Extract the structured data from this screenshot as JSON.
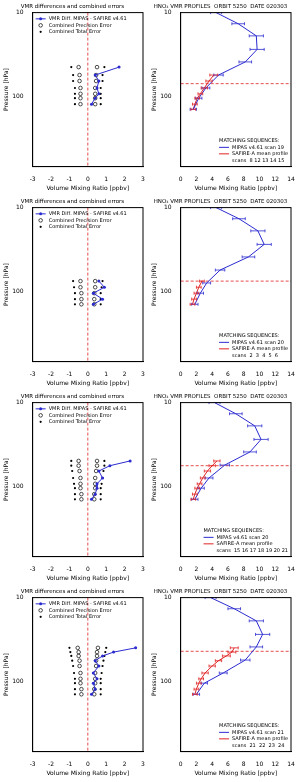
{
  "chart_data": [
    {
      "type": "scatter",
      "title": "VMR differences and combined errors",
      "x_label": "Volume Mixing Ratio [ppbv]",
      "y_label": "Pressure [hPa]",
      "xlim": [
        -3,
        3
      ],
      "xticks": [
        -3,
        -2,
        -1,
        0,
        1,
        2,
        3
      ],
      "ylim": [
        10,
        700
      ],
      "yticks": [
        10,
        100
      ],
      "log": "y",
      "grid": false,
      "legend": "upper left",
      "vline_x": 0,
      "series": [
        {
          "name": "VMR Diff. MIPAS - SAFIRE v4.61",
          "color": "#2b2bd0",
          "marker": "circle",
          "line_style": "solid",
          "x": [
            1.7,
            0.4,
            0.6,
            0.5,
            0.6,
            0.4,
            0.2
          ],
          "y": [
            45,
            56,
            66,
            80,
            94,
            106,
            125
          ]
        },
        {
          "name": "Combined Precision Error",
          "color": "#000000",
          "marker": "open_circle",
          "line_style": "none",
          "x": [
            -0.5,
            0.5,
            -0.45,
            0.45,
            -0.45,
            0.45,
            -0.4,
            0.4,
            -0.4,
            0.4,
            -0.4,
            0.4,
            -0.4,
            0.4
          ],
          "y": [
            45,
            45,
            56,
            56,
            66,
            66,
            80,
            80,
            94,
            94,
            106,
            106,
            125,
            125
          ]
        },
        {
          "name": "Combined Total Error",
          "color": "#000000",
          "marker": "dot",
          "line_style": "none",
          "x": [
            -0.9,
            0.9,
            -0.8,
            0.8,
            -0.8,
            0.8,
            -0.7,
            0.7,
            -0.7,
            0.7,
            -0.7,
            0.7,
            -0.7,
            0.7
          ],
          "y": [
            45,
            45,
            56,
            56,
            66,
            66,
            80,
            80,
            94,
            94,
            106,
            106,
            125,
            125
          ]
        }
      ]
    },
    {
      "type": "scatter",
      "title": "HNO₃ VMR PROFILES  ORBIT 5250  DATE 020303",
      "x_label": "Volume Mixing Ratio [ppbv]",
      "y_label": "Pressure [hPa]",
      "xlim": [
        0,
        14
      ],
      "xticks": [
        0,
        2,
        4,
        6,
        8,
        10,
        12,
        14
      ],
      "ylim": [
        10,
        700
      ],
      "yticks": [
        10,
        100
      ],
      "log": "y",
      "grid": false,
      "legend": "lower right",
      "legend_title": "MATCHING SEQUENCES:",
      "hline_y": 71,
      "series": [
        {
          "name": "MIPAS v4.61 scan 19",
          "color": "#2b2bd0",
          "marker": "none",
          "line_style": "solid",
          "x": [
            4.5,
            7.3,
            9.6,
            9.7,
            8.2,
            4.8,
            3.2,
            2.3,
            1.6
          ],
          "y": [
            10,
            13.6,
            19,
            27.6,
            39,
            56,
            80,
            106,
            144
          ],
          "x_err": [
            0.7,
            0.8,
            0.9,
            0.9,
            0.8,
            0.6,
            0.5,
            0.4,
            0.4
          ]
        },
        {
          "name": "SAFIRE-A mean profile\nscans  8 12 13 14 15",
          "color": "#e02020",
          "marker": "none",
          "line_style": "solid",
          "x": [
            4.2,
            3.6,
            3.0,
            2.5,
            2.1,
            1.8,
            1.6
          ],
          "y": [
            56,
            66,
            80,
            94,
            106,
            125,
            144
          ],
          "x_err": [
            0.5,
            0.4,
            0.4,
            0.3,
            0.3,
            0.3,
            0.3
          ]
        }
      ]
    },
    {
      "type": "scatter",
      "title": "VMR differences and combined errors",
      "x_label": "Volume Mixing Ratio [ppbv]",
      "y_label": "Pressure [hPa]",
      "xlim": [
        -3,
        3
      ],
      "xticks": [
        -3,
        -2,
        -1,
        0,
        1,
        2,
        3
      ],
      "ylim": [
        10,
        700
      ],
      "yticks": [
        10,
        100
      ],
      "log": "y",
      "grid": false,
      "legend": "upper left",
      "vline_x": 0,
      "series": [
        {
          "name": "VMR Diff. MIPAS - SAFIRE v4.61",
          "color": "#2b2bd0",
          "marker": "circle",
          "line_style": "solid",
          "x": [
            0.6,
            0.9,
            0.3,
            0.8,
            0.3
          ],
          "y": [
            76,
            90,
            106,
            125,
            144
          ]
        },
        {
          "name": "Combined Precision Error",
          "color": "#000000",
          "marker": "open_circle",
          "line_style": "none",
          "x": [
            -0.4,
            0.4,
            -0.4,
            0.4,
            -0.35,
            0.35,
            -0.35,
            0.35,
            -0.35,
            0.35
          ],
          "y": [
            76,
            76,
            90,
            90,
            106,
            106,
            125,
            125,
            144,
            144
          ]
        },
        {
          "name": "Combined Total Error",
          "color": "#000000",
          "marker": "dot",
          "line_style": "none",
          "x": [
            -0.8,
            0.8,
            -0.75,
            0.75,
            -0.7,
            0.7,
            -0.7,
            0.7,
            -0.7,
            0.7
          ],
          "y": [
            76,
            76,
            90,
            90,
            106,
            106,
            125,
            125,
            144,
            144
          ]
        }
      ]
    },
    {
      "type": "scatter",
      "title": "HNO₃ VMR PROFILES  ORBIT 5250  DATE 020303",
      "x_label": "Volume Mixing Ratio [ppbv]",
      "y_label": "Pressure [hPa]",
      "xlim": [
        0,
        14
      ],
      "xticks": [
        0,
        2,
        4,
        6,
        8,
        10,
        12,
        14
      ],
      "ylim": [
        10,
        700
      ],
      "yticks": [
        10,
        100
      ],
      "log": "y",
      "grid": false,
      "legend": "lower right",
      "legend_title": "MATCHING SEQUENCES:",
      "hline_y": 76,
      "series": [
        {
          "name": "MIPAS v4.61 scan 20",
          "color": "#2b2bd0",
          "marker": "none",
          "line_style": "solid",
          "x": [
            4.5,
            7.4,
            9.8,
            10.6,
            8.6,
            5.0,
            3.3,
            2.5,
            1.8
          ],
          "y": [
            10,
            13.6,
            19,
            27.6,
            39,
            56,
            80,
            106,
            144
          ],
          "x_err": [
            0.7,
            0.8,
            0.9,
            0.9,
            0.8,
            0.6,
            0.5,
            0.4,
            0.4
          ]
        },
        {
          "name": "SAFIRE-A mean profile\nscans  2  3  4  5  6",
          "color": "#e02020",
          "marker": "none",
          "line_style": "solid",
          "x": [
            2.7,
            2.3,
            2.0,
            1.7,
            1.5
          ],
          "y": [
            76,
            90,
            106,
            125,
            144
          ],
          "x_err": [
            0.3,
            0.3,
            0.3,
            0.3,
            0.3
          ]
        }
      ]
    },
    {
      "type": "scatter",
      "title": "VMR differences and combined errors",
      "x_label": "Volume Mixing Ratio [ppbv]",
      "y_label": "Pressure [hPa]",
      "xlim": [
        -3,
        3
      ],
      "xticks": [
        -3,
        -2,
        -1,
        0,
        1,
        2,
        3
      ],
      "ylim": [
        10,
        700
      ],
      "yticks": [
        10,
        100
      ],
      "log": "y",
      "grid": false,
      "legend": "upper left",
      "vline_x": 0,
      "series": [
        {
          "name": "VMR Diff. MIPAS - SAFIRE v4.61",
          "color": "#2b2bd0",
          "marker": "circle",
          "line_style": "solid",
          "x": [
            2.3,
            1.2,
            0.6,
            0.8,
            0.5,
            0.5,
            0.4,
            0.2
          ],
          "y": [
            50,
            57,
            66,
            80,
            94,
            106,
            125,
            144
          ]
        },
        {
          "name": "Combined Precision Error",
          "color": "#000000",
          "marker": "open_circle",
          "line_style": "none",
          "x": [
            -0.5,
            0.5,
            -0.5,
            0.5,
            -0.45,
            0.45,
            -0.4,
            0.4,
            -0.4,
            0.4,
            -0.4,
            0.4,
            -0.35,
            0.35,
            -0.35,
            0.35
          ],
          "y": [
            50,
            50,
            57,
            57,
            66,
            66,
            80,
            80,
            94,
            94,
            106,
            106,
            125,
            125,
            144,
            144
          ]
        },
        {
          "name": "Combined Total Error",
          "color": "#000000",
          "marker": "dot",
          "line_style": "none",
          "x": [
            -0.9,
            0.9,
            -0.9,
            0.9,
            -0.85,
            0.85,
            -0.8,
            0.8,
            -0.75,
            0.75,
            -0.7,
            0.7,
            -0.7,
            0.7,
            -0.7,
            0.7
          ],
          "y": [
            50,
            50,
            57,
            57,
            66,
            66,
            80,
            80,
            94,
            94,
            106,
            106,
            125,
            125,
            144,
            144
          ]
        }
      ]
    },
    {
      "type": "scatter",
      "title": "HNO₃ VMR PROFILES  ORBIT 5250  DATE 020303",
      "x_label": "Volume Mixing Ratio [ppbv]",
      "y_label": "Pressure [hPa]",
      "xlim": [
        0,
        14
      ],
      "xticks": [
        0,
        2,
        4,
        6,
        8,
        10,
        12,
        14
      ],
      "ylim": [
        10,
        700
      ],
      "yticks": [
        10,
        100
      ],
      "log": "y",
      "grid": false,
      "legend": "lower right",
      "legend_title": "MATCHING SEQUENCES:",
      "hline_y": 57,
      "series": [
        {
          "name": "MIPAS v4.61 scan 20",
          "color": "#2b2bd0",
          "marker": "none",
          "line_style": "solid",
          "x": [
            4.3,
            7.0,
            9.4,
            10.2,
            8.8,
            5.6,
            3.6,
            2.6,
            1.8
          ],
          "y": [
            10,
            13.6,
            19,
            27.6,
            39,
            56,
            80,
            106,
            144
          ],
          "x_err": [
            0.7,
            0.8,
            0.9,
            0.9,
            0.8,
            0.6,
            0.5,
            0.4,
            0.4
          ]
        },
        {
          "name": "SAFIRE-A mean profile\nscans  15 16 17 18 19 20 21",
          "color": "#e02020",
          "marker": "none",
          "line_style": "solid",
          "x": [
            4.6,
            4.0,
            3.4,
            2.8,
            2.4,
            2.1,
            1.8,
            1.6
          ],
          "y": [
            50,
            57,
            66,
            80,
            94,
            106,
            125,
            144
          ],
          "x_err": [
            0.4,
            0.4,
            0.4,
            0.3,
            0.3,
            0.3,
            0.3,
            0.3
          ]
        }
      ]
    },
    {
      "type": "scatter",
      "title": "VMR differences and combined errors",
      "x_label": "Volume Mixing Ratio [ppbv]",
      "y_label": "Pressure [hPa]",
      "xlim": [
        -3,
        3
      ],
      "xticks": [
        -3,
        -2,
        -1,
        0,
        1,
        2,
        3
      ],
      "ylim": [
        10,
        700
      ],
      "yticks": [
        10,
        100
      ],
      "log": "y",
      "grid": false,
      "legend": "upper left",
      "vline_x": 0,
      "series": [
        {
          "name": "VMR Diff. MIPAS - SAFIRE v4.61",
          "color": "#2b2bd0",
          "marker": "circle",
          "line_style": "solid",
          "x": [
            2.6,
            1.4,
            0.8,
            0.4,
            0.6,
            0.3,
            0.5,
            0.3,
            0.4,
            0.2
          ],
          "y": [
            40,
            45,
            50,
            57,
            66,
            80,
            94,
            106,
            125,
            144
          ]
        },
        {
          "name": "Combined Precision Error",
          "color": "#000000",
          "marker": "open_circle",
          "line_style": "none",
          "x": [
            -0.55,
            0.55,
            -0.5,
            0.5,
            -0.5,
            0.5,
            -0.45,
            0.45,
            -0.45,
            0.45,
            -0.4,
            0.4,
            -0.4,
            0.4,
            -0.4,
            0.4,
            -0.35,
            0.35,
            -0.35,
            0.35
          ],
          "y": [
            40,
            40,
            45,
            45,
            50,
            50,
            57,
            57,
            66,
            66,
            80,
            80,
            94,
            94,
            106,
            106,
            125,
            125,
            144,
            144
          ]
        },
        {
          "name": "Combined Total Error",
          "color": "#000000",
          "marker": "dot",
          "line_style": "none",
          "x": [
            -1.0,
            1.0,
            -0.95,
            0.95,
            -0.9,
            0.9,
            -0.85,
            0.85,
            -0.8,
            0.8,
            -0.75,
            0.75,
            -0.7,
            0.7,
            -0.7,
            0.7,
            -0.7,
            0.7,
            -0.7,
            0.7
          ],
          "y": [
            40,
            40,
            45,
            45,
            50,
            50,
            57,
            57,
            66,
            66,
            80,
            80,
            94,
            94,
            106,
            106,
            125,
            125,
            144,
            144
          ]
        }
      ]
    },
    {
      "type": "scatter",
      "title": "HNO₃ VMR PROFILES  ORBIT 5250  DATE 020303",
      "x_label": "Volume Mixing Ratio [ppbv]",
      "y_label": "Pressure [hPa]",
      "xlim": [
        0,
        14
      ],
      "xticks": [
        0,
        2,
        4,
        6,
        8,
        10,
        12,
        14
      ],
      "ylim": [
        10,
        700
      ],
      "yticks": [
        10,
        100
      ],
      "log": "y",
      "grid": false,
      "legend": "lower right",
      "legend_title": "MATCHING SEQUENCES:",
      "hline_y": 44,
      "series": [
        {
          "name": "MIPAS v4.61 scan 21",
          "color": "#2b2bd0",
          "marker": "none",
          "line_style": "solid",
          "x": [
            3.8,
            6.8,
            9.6,
            10.4,
            9.6,
            8.2,
            5.4,
            3.0,
            2.0
          ],
          "y": [
            10,
            13.6,
            19,
            27.6,
            39,
            56,
            80,
            106,
            144
          ],
          "x_err": [
            0.7,
            0.8,
            0.9,
            0.9,
            0.8,
            0.6,
            0.5,
            0.4,
            0.4
          ]
        },
        {
          "name": "SAFIRE-A mean profile\nscans  21  22  23  24",
          "color": "#e02020",
          "marker": "none",
          "line_style": "solid",
          "x": [
            6.8,
            6.5,
            5.8,
            4.8,
            4.0,
            3.1,
            2.6,
            2.3,
            2.0,
            1.8
          ],
          "y": [
            40,
            45,
            50,
            57,
            66,
            80,
            94,
            106,
            125,
            144
          ],
          "x_err": [
            0.5,
            0.5,
            0.5,
            0.4,
            0.4,
            0.4,
            0.3,
            0.3,
            0.3,
            0.3
          ]
        }
      ]
    }
  ]
}
